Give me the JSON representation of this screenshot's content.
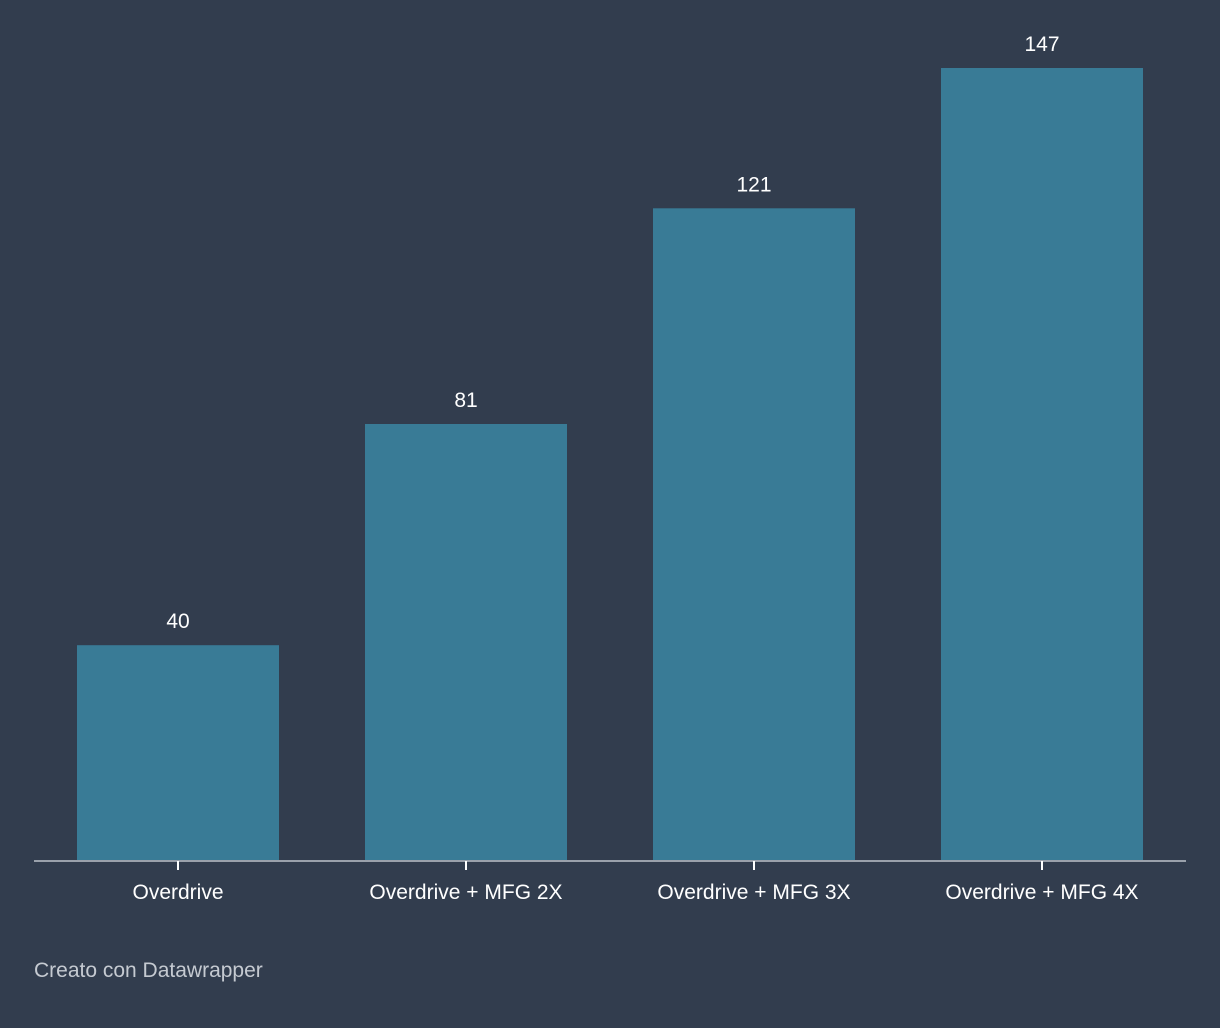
{
  "colors": {
    "background": "#323d4e",
    "bar": "#397b96",
    "text": "#ffffff",
    "axis": "#9aa1ab",
    "footer_text": "#c5cad1"
  },
  "chart_data": {
    "type": "bar",
    "categories": [
      "Overdrive",
      "Overdrive + MFG 2X",
      "Overdrive + MFG 3X",
      "Overdrive + MFG 4X"
    ],
    "values": [
      40,
      81,
      121,
      147
    ],
    "data_labels": [
      "40",
      "81",
      "121",
      "147"
    ],
    "ylim": [
      0,
      147
    ],
    "grid": false,
    "legend": "none"
  },
  "footer": {
    "credit": "Creato con Datawrapper"
  }
}
